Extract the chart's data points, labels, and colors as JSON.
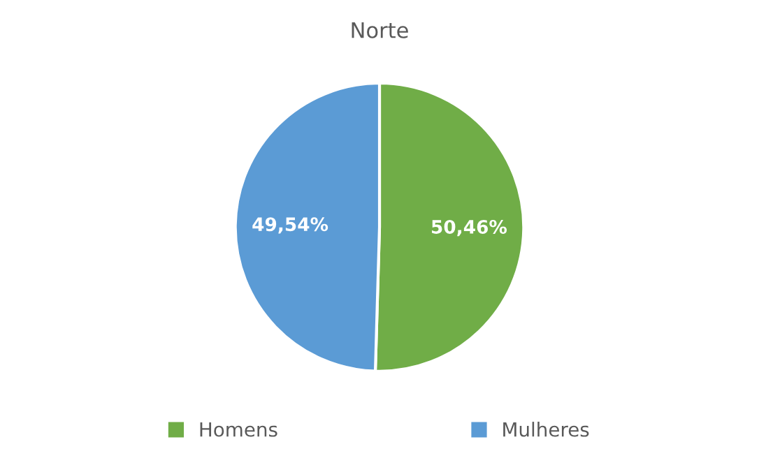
{
  "chart_data": {
    "type": "pie",
    "title": "Norte",
    "categories": [
      "Homens",
      "Mulheres"
    ],
    "values": [
      50.46,
      49.54
    ],
    "value_labels": [
      "50,46%",
      "49,54%"
    ],
    "colors": [
      "#70ad47",
      "#5b9bd5"
    ],
    "legend": "bottom"
  }
}
